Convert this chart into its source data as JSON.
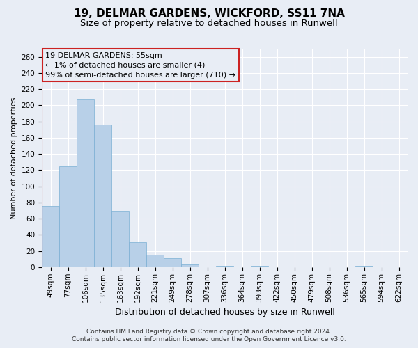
{
  "title1": "19, DELMAR GARDENS, WICKFORD, SS11 7NA",
  "title2": "Size of property relative to detached houses in Runwell",
  "xlabel": "Distribution of detached houses by size in Runwell",
  "ylabel": "Number of detached properties",
  "categories": [
    "49sqm",
    "77sqm",
    "106sqm",
    "135sqm",
    "163sqm",
    "192sqm",
    "221sqm",
    "249sqm",
    "278sqm",
    "307sqm",
    "336sqm",
    "364sqm",
    "393sqm",
    "422sqm",
    "450sqm",
    "479sqm",
    "508sqm",
    "536sqm",
    "565sqm",
    "594sqm",
    "622sqm"
  ],
  "values": [
    76,
    125,
    208,
    176,
    70,
    31,
    15,
    11,
    3,
    0,
    2,
    0,
    2,
    0,
    0,
    0,
    0,
    0,
    2,
    0,
    0
  ],
  "bar_color": "#b8d0e8",
  "bar_edgecolor": "#7aafd4",
  "highlight_color": "#cc2222",
  "annotation_text": "19 DELMAR GARDENS: 55sqm\n← 1% of detached houses are smaller (4)\n99% of semi-detached houses are larger (710) →",
  "annotation_box_edgecolor": "#cc2222",
  "ylim": [
    0,
    270
  ],
  "yticks": [
    0,
    20,
    40,
    60,
    80,
    100,
    120,
    140,
    160,
    180,
    200,
    220,
    240,
    260
  ],
  "footer1": "Contains HM Land Registry data © Crown copyright and database right 2024.",
  "footer2": "Contains public sector information licensed under the Open Government Licence v3.0.",
  "bg_color": "#e8edf5",
  "plot_bg_color": "#e8edf5",
  "grid_color": "#ffffff",
  "title1_fontsize": 11,
  "title2_fontsize": 9.5,
  "xlabel_fontsize": 9,
  "ylabel_fontsize": 8,
  "tick_fontsize": 7.5,
  "annotation_fontsize": 8,
  "footer_fontsize": 6.5,
  "red_line_x": -0.5
}
